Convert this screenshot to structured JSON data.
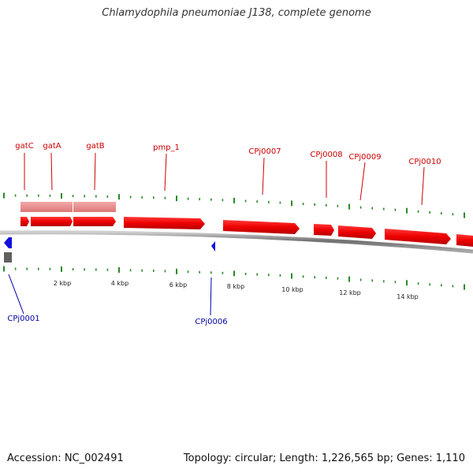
{
  "title": "Chlamydophila pneumoniae J138, complete genome",
  "colors": {
    "forward_gene": "#ee0000",
    "forward_gene_dark": "#c40000",
    "rna_feature": "#e98a8a",
    "reverse_gene": "#1010dd",
    "backbone": "#808080",
    "tick": "#2a8a2a",
    "label_forward": "#cc0000",
    "label_reverse": "#0000aa",
    "axis_label": "#222222"
  },
  "genes_forward": [
    {
      "name": "gatC",
      "label": "gatC"
    },
    {
      "name": "gatA",
      "label": "gatA"
    },
    {
      "name": "gatB",
      "label": "gatB"
    },
    {
      "name": "pmp_1",
      "label": "pmp_1"
    },
    {
      "name": "CPj0007",
      "label": "CPj0007"
    },
    {
      "name": "CPj0008",
      "label": "CPj0008"
    },
    {
      "name": "CPj0009",
      "label": "CPj0009"
    },
    {
      "name": "CPj0010",
      "label": "CPj0010"
    }
  ],
  "genes_reverse": [
    {
      "name": "CPj0001",
      "label": "CPj0001"
    },
    {
      "name": "CPj0006",
      "label": "CPj0006"
    }
  ],
  "scale_labels": [
    "2 kbp",
    "4 kbp",
    "6 kbp",
    "8 kbp",
    "10 kbp",
    "12 kbp",
    "14 kbp"
  ],
  "footer": {
    "accession": "Accession: NC_002491",
    "stats": "Topology: circular; Length: 1,226,565 bp; Genes: 1,110"
  }
}
